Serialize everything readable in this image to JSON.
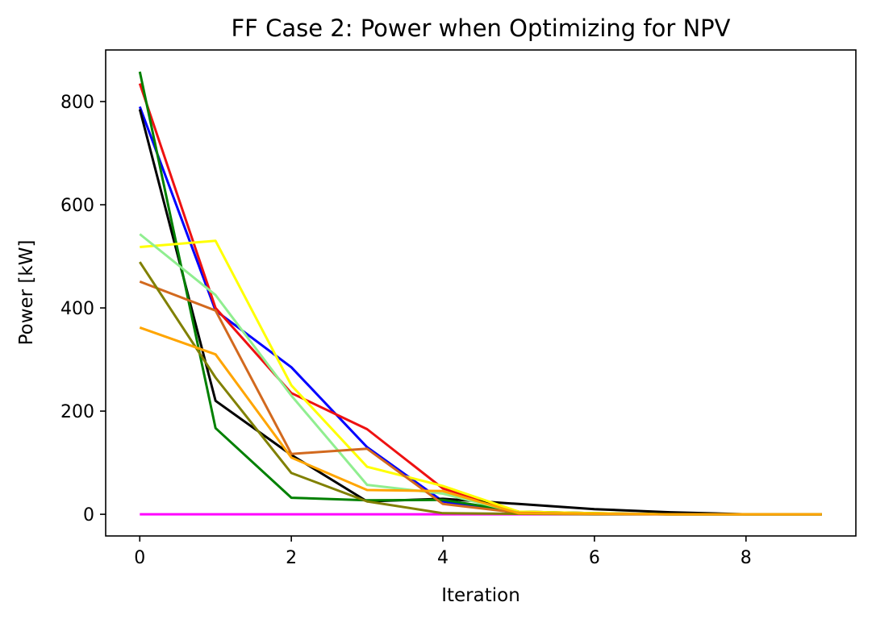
{
  "chart_data": {
    "type": "line",
    "title": "FF Case 2: Power when Optimizing for NPV",
    "xlabel": "Iteration",
    "ylabel": "Power [kW]",
    "xlim": [
      -0.45,
      9.45
    ],
    "ylim": [
      -42,
      900
    ],
    "xticks": [
      0,
      2,
      4,
      6,
      8
    ],
    "yticks": [
      0,
      200,
      400,
      600,
      800
    ],
    "grid": false,
    "legend": "none",
    "x": [
      0,
      1,
      2,
      3,
      4,
      5,
      6,
      7,
      8,
      9
    ],
    "series": [
      {
        "color": "#ff00ff",
        "values": [
          0,
          0,
          0,
          0,
          0,
          0,
          0,
          0,
          0,
          0
        ]
      },
      {
        "color": "#0000ff",
        "values": [
          790,
          395,
          285,
          130,
          25,
          2,
          1,
          0,
          0,
          0
        ]
      },
      {
        "color": "#ee1111",
        "values": [
          835,
          400,
          235,
          165,
          50,
          5,
          2,
          0,
          0,
          0
        ]
      },
      {
        "color": "#000000",
        "values": [
          785,
          220,
          115,
          25,
          30,
          20,
          10,
          4,
          0,
          0
        ]
      },
      {
        "color": "#008000",
        "values": [
          858,
          167,
          32,
          27,
          28,
          5,
          2,
          0,
          0,
          0
        ]
      },
      {
        "color": "#ffff00",
        "values": [
          518,
          530,
          250,
          92,
          55,
          5,
          2,
          0,
          0,
          0
        ]
      },
      {
        "color": "#90ee90",
        "values": [
          543,
          425,
          230,
          57,
          40,
          3,
          1,
          0,
          0,
          0
        ]
      },
      {
        "color": "#d2691e",
        "values": [
          451,
          395,
          117,
          127,
          20,
          3,
          1,
          0,
          0,
          0
        ]
      },
      {
        "color": "#808000",
        "values": [
          489,
          265,
          80,
          25,
          2,
          1,
          0,
          0,
          0,
          0
        ]
      },
      {
        "color": "#ffa500",
        "values": [
          362,
          310,
          110,
          47,
          45,
          2,
          1,
          0,
          0,
          0
        ]
      }
    ]
  }
}
